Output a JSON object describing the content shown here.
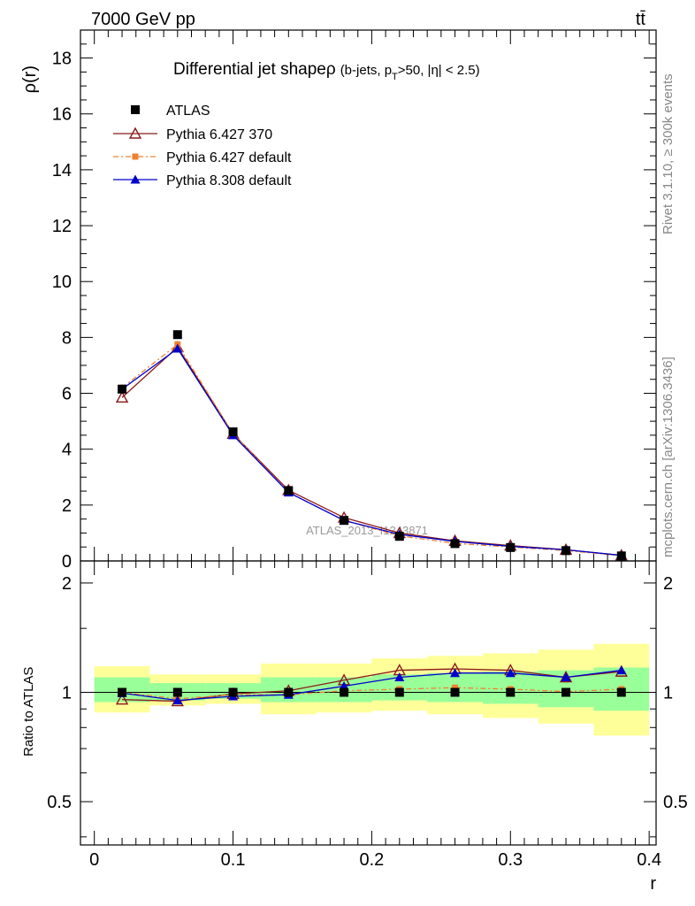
{
  "header": {
    "left": "7000 GeV pp",
    "right": "tt̄"
  },
  "side_labels": {
    "rivet": "Rivet 3.1.10, ≥ 300k events",
    "mcplots": "mcplots.cern.ch [arXiv:1306.3436]"
  },
  "chart_data": {
    "type": "line",
    "title_main": "Differential jet shape",
    "title_rho": "ρ",
    "title_sub_a": "(b-jets, p",
    "title_sub_T": "T",
    "title_sub_b": ">50, |η| < 2.5)",
    "watermark": "ATLAS_2013_I1243871",
    "xlabel": "r",
    "ylabel": "ρ(r)",
    "ratio_ylabel": "Ratio to ATLAS",
    "xlim": [
      -0.01,
      0.405
    ],
    "ylim": [
      0,
      19
    ],
    "ratio_ylim": [
      0.38,
      2.3
    ],
    "x_ticks": [
      "0",
      "0.1",
      "0.2",
      "0.3",
      "0.4"
    ],
    "y_ticks": [
      "0",
      "2",
      "4",
      "6",
      "8",
      "10",
      "12",
      "14",
      "16",
      "18"
    ],
    "ratio_ticks": [
      "0.5",
      "1",
      "2"
    ],
    "x": [
      0.02,
      0.06,
      0.1,
      0.14,
      0.18,
      0.22,
      0.26,
      0.3,
      0.34,
      0.38
    ],
    "bin_edges": [
      0,
      0.04,
      0.08,
      0.12,
      0.16,
      0.2,
      0.24,
      0.28,
      0.32,
      0.36,
      0.4
    ],
    "band_green": [
      [
        0.94,
        1.1
      ],
      [
        0.95,
        1.06
      ],
      [
        0.96,
        1.06
      ],
      [
        0.94,
        1.1
      ],
      [
        0.94,
        1.1
      ],
      [
        0.95,
        1.12
      ],
      [
        0.94,
        1.13
      ],
      [
        0.93,
        1.14
      ],
      [
        0.91,
        1.15
      ],
      [
        0.89,
        1.17
      ]
    ],
    "band_yellow": [
      [
        0.88,
        1.18
      ],
      [
        0.92,
        1.12
      ],
      [
        0.93,
        1.12
      ],
      [
        0.87,
        1.2
      ],
      [
        0.88,
        1.2
      ],
      [
        0.89,
        1.24
      ],
      [
        0.87,
        1.26
      ],
      [
        0.85,
        1.28
      ],
      [
        0.82,
        1.31
      ],
      [
        0.76,
        1.36
      ]
    ],
    "series": [
      {
        "name": "ATLAS",
        "color": "#000000",
        "marker": "square",
        "values": [
          6.15,
          8.1,
          4.62,
          2.52,
          1.45,
          0.88,
          0.62,
          0.48,
          0.37,
          0.18
        ]
      },
      {
        "name": "Pythia 6.427 370",
        "color": "#8b1a1a",
        "marker": "open-triangle",
        "values": [
          5.85,
          7.65,
          4.55,
          2.53,
          1.55,
          1.0,
          0.72,
          0.55,
          0.4,
          0.2
        ],
        "ratio": [
          0.955,
          0.945,
          0.99,
          1.01,
          1.08,
          1.15,
          1.16,
          1.15,
          1.1,
          1.14
        ]
      },
      {
        "name": "Pythia 6.427 default",
        "color": "#f08030",
        "marker": "small-square",
        "values": [
          6.2,
          7.75,
          4.55,
          2.45,
          1.45,
          0.9,
          0.63,
          0.5,
          0.37,
          0.19
        ],
        "ratio": [
          1.0,
          0.96,
          0.985,
          0.985,
          1.01,
          1.02,
          1.03,
          1.02,
          1.005,
          1.02
        ]
      },
      {
        "name": "Pythia 8.308 default",
        "color": "#0000cc",
        "marker": "filled-triangle",
        "values": [
          6.15,
          7.6,
          4.5,
          2.45,
          1.45,
          0.95,
          0.7,
          0.52,
          0.4,
          0.2
        ],
        "ratio": [
          0.995,
          0.95,
          0.975,
          0.985,
          1.04,
          1.1,
          1.13,
          1.13,
          1.1,
          1.15
        ]
      }
    ]
  }
}
